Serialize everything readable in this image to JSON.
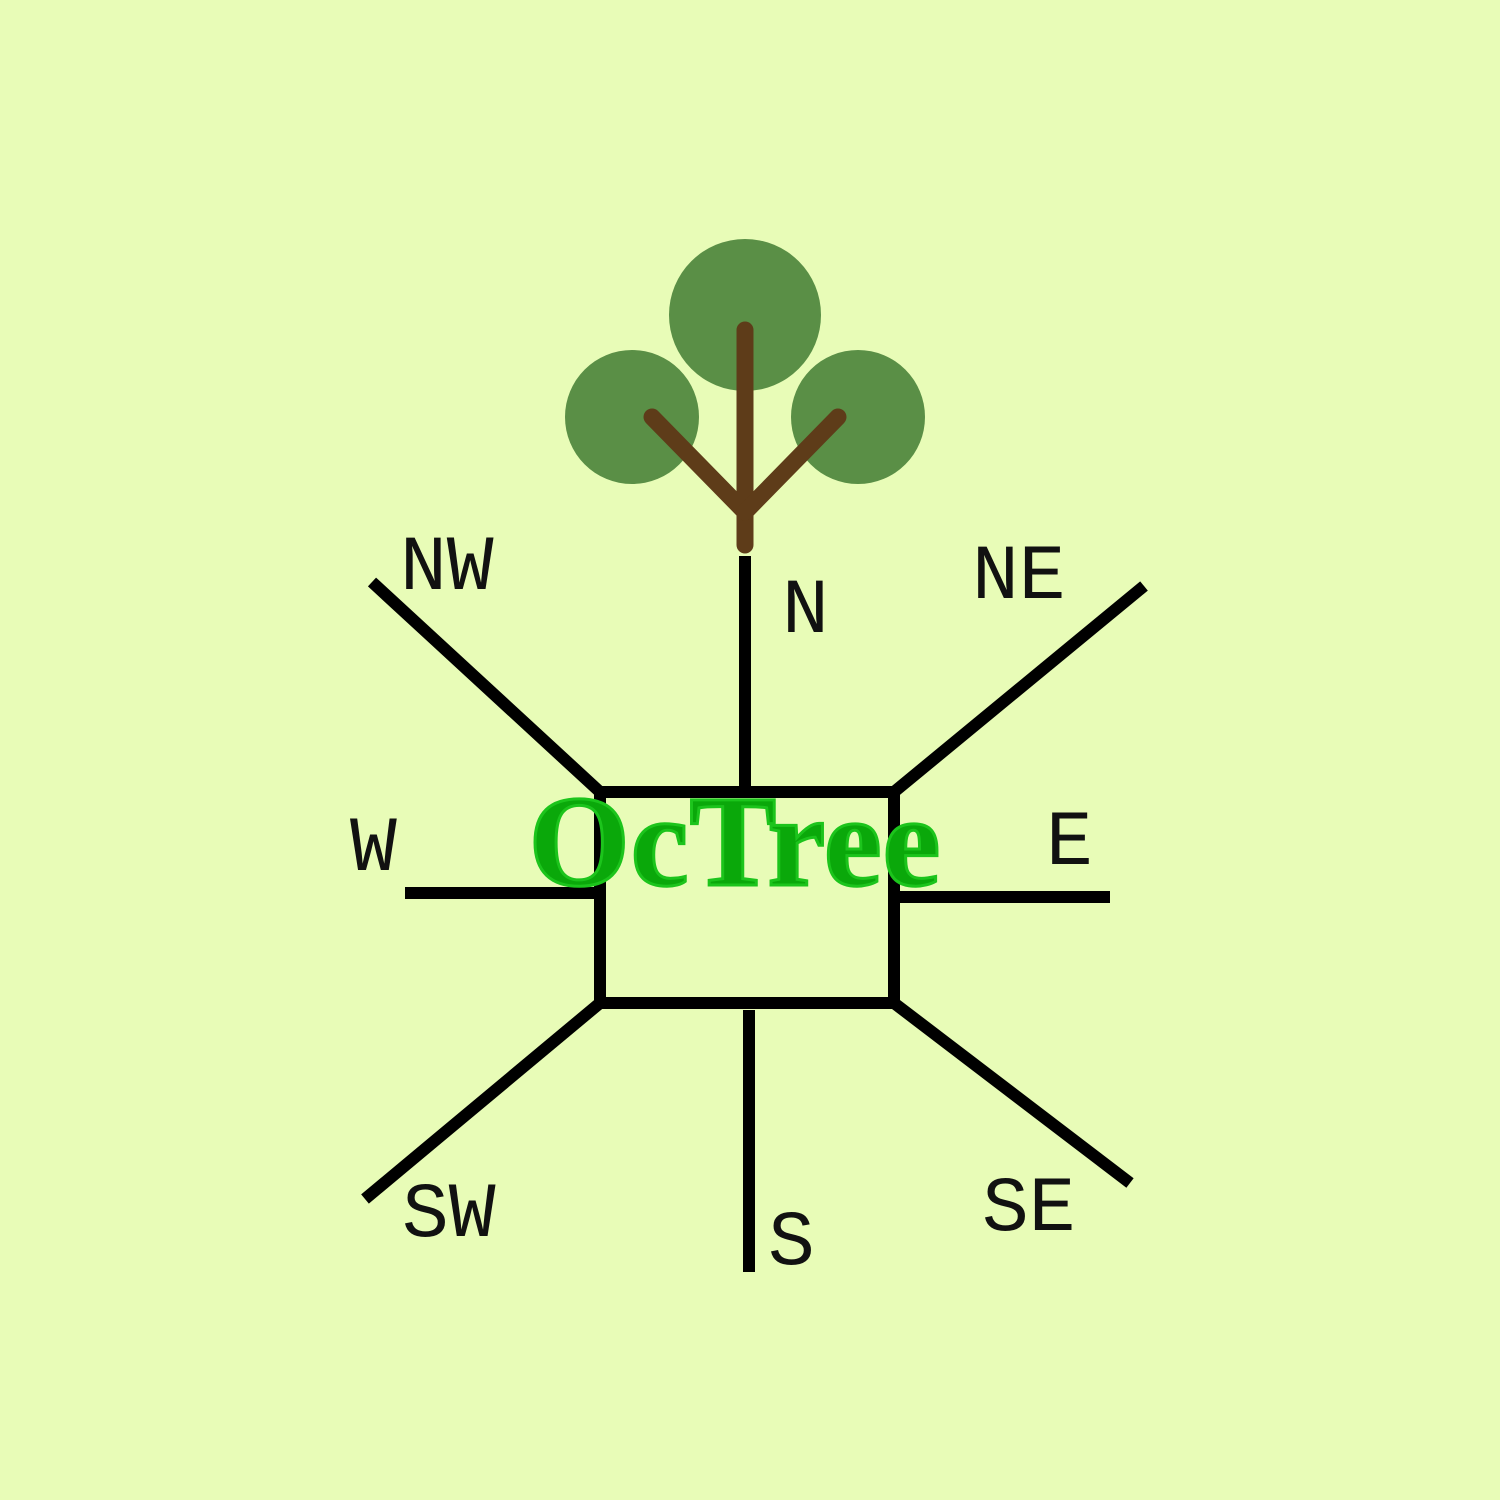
{
  "title": "OcTree",
  "directions": {
    "nw": "NW",
    "n": "N",
    "ne": "NE",
    "w": "W",
    "e": "E",
    "sw": "SW",
    "s": "S",
    "se": "SE"
  },
  "colors": {
    "background": "#e8fcb7",
    "foliage": "#5a8f46",
    "trunk": "#5e3c19",
    "lines": "#000000",
    "title": "#0aa80a"
  },
  "icons": {
    "logo": "tree-icon"
  }
}
